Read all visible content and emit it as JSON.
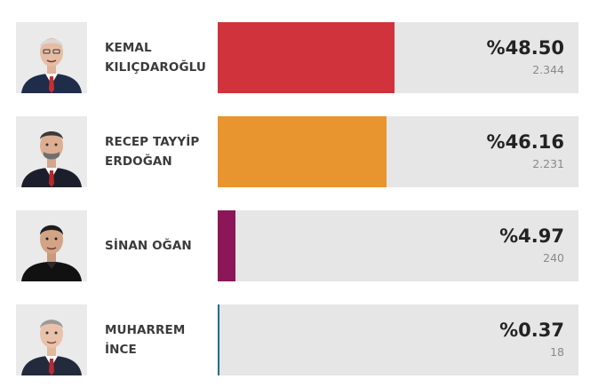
{
  "candidates": [
    {
      "name_line1": "KEMAL",
      "name_line2": "KILIÇDAROĞLU",
      "percent_label": "%48.50",
      "percent": 48.5,
      "votes": "2.344",
      "color": "#d0333c",
      "avatar_icon": "candidate-photo"
    },
    {
      "name_line1": "RECEP TAYYİP",
      "name_line2": "ERDOĞAN",
      "percent_label": "%46.16",
      "percent": 46.16,
      "votes": "2.231",
      "color": "#e8952f",
      "avatar_icon": "candidate-photo"
    },
    {
      "name_line1": "SİNAN OĞAN",
      "name_line2": "",
      "percent_label": "%4.97",
      "percent": 4.97,
      "votes": "240",
      "color": "#8c1758",
      "avatar_icon": "candidate-photo"
    },
    {
      "name_line1": "MUHARREM",
      "name_line2": "İNCE",
      "percent_label": "%0.37",
      "percent": 0.37,
      "votes": "18",
      "color": "#1f6f8b",
      "avatar_icon": "candidate-photo"
    }
  ],
  "colors": {
    "track": "#e6e6e6",
    "name_text": "#3b3b3b",
    "percent_text": "#222222",
    "votes_text": "#8a8a8a"
  }
}
